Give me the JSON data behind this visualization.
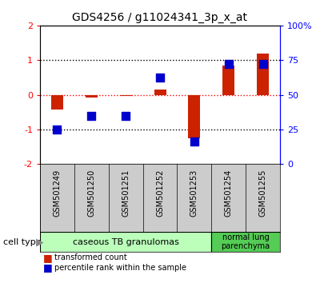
{
  "title": "GDS4256 / g11024341_3p_x_at",
  "samples": [
    "GSM501249",
    "GSM501250",
    "GSM501251",
    "GSM501252",
    "GSM501253",
    "GSM501254",
    "GSM501255"
  ],
  "transformed_count": [
    -0.42,
    -0.07,
    -0.04,
    0.15,
    -1.25,
    0.85,
    1.2
  ],
  "percentile_left_axis": [
    -1.0,
    -0.6,
    -0.6,
    0.5,
    -1.35,
    0.88,
    0.9
  ],
  "ylim_left": [
    -2,
    2
  ],
  "ylim_right": [
    0,
    100
  ],
  "yticks_left": [
    -2,
    -1,
    0,
    1,
    2
  ],
  "yticks_right": [
    0,
    25,
    50,
    75,
    100
  ],
  "ytick_labels_right": [
    "0",
    "25",
    "50",
    "75",
    "100%"
  ],
  "bar_color": "#cc2200",
  "dot_color": "#0000cc",
  "group1_label": "caseous TB granulomas",
  "group2_label": "normal lung\nparenchyma",
  "group1_color": "#bbffbb",
  "group2_color": "#55cc55",
  "cell_type_label": "cell type",
  "legend_bar_label": "transformed count",
  "legend_dot_label": "percentile rank within the sample",
  "bar_width": 0.35,
  "dot_size": 55,
  "sample_box_color": "#cccccc",
  "n_group1": 5,
  "n_group2": 2
}
